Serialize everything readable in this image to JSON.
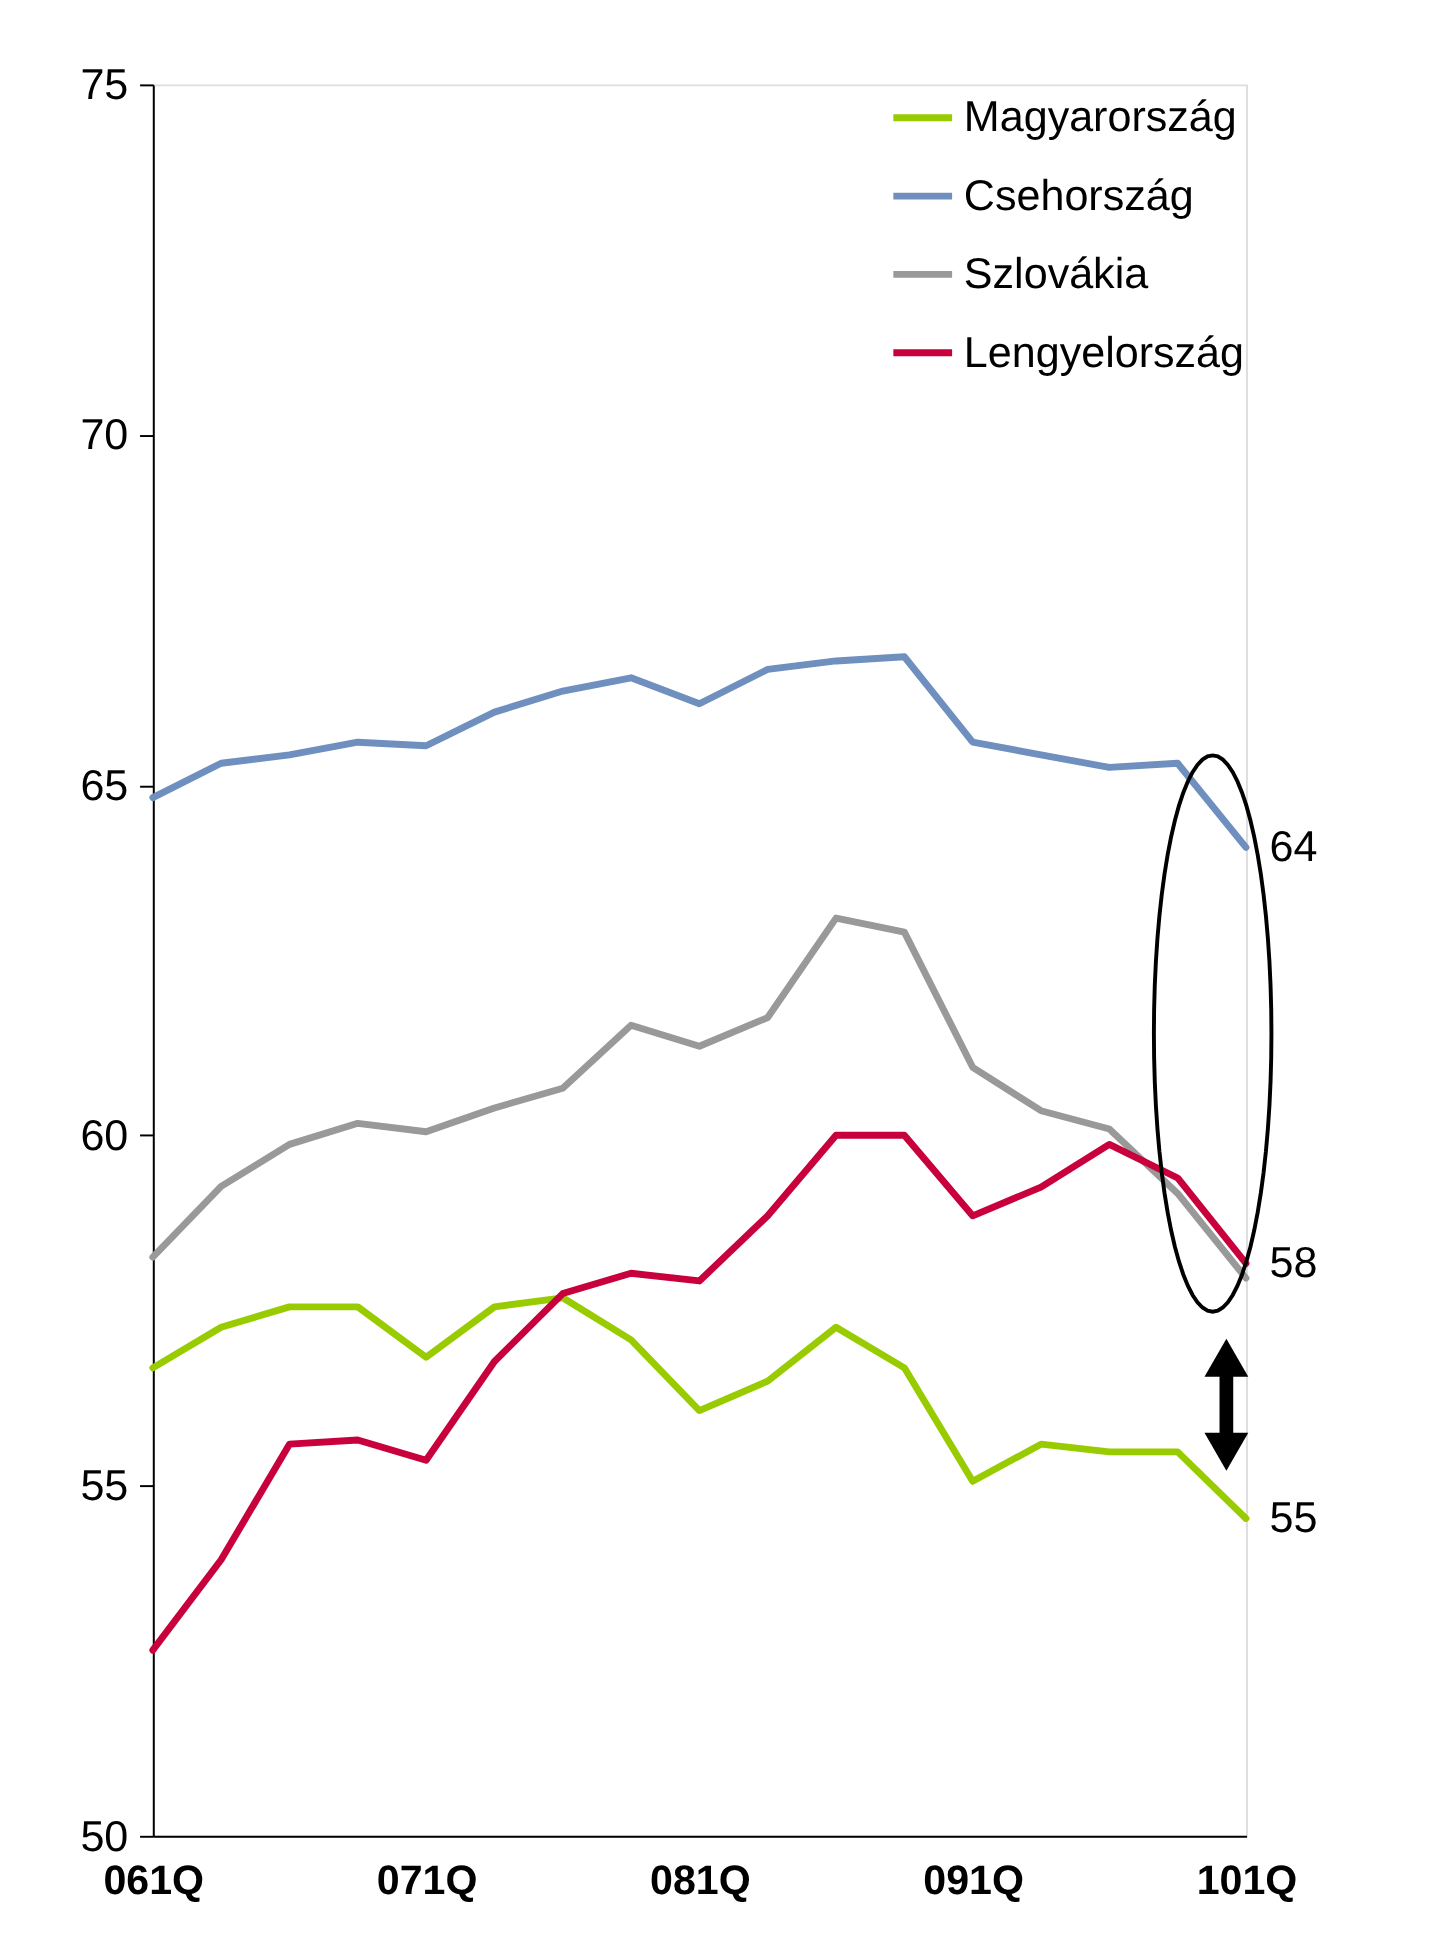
{
  "chart_data": {
    "type": "line",
    "categories": [
      "061Q",
      null,
      null,
      null,
      "071Q",
      null,
      null,
      null,
      "081Q",
      null,
      null,
      null,
      "091Q",
      null,
      null,
      null,
      "101Q"
    ],
    "series": [
      {
        "name": "Magyarország",
        "color": "#99cc00",
        "values": [
          56.68,
          57.26,
          57.55,
          57.55,
          56.83,
          57.55,
          57.68,
          57.08,
          56.07,
          56.49,
          57.26,
          56.68,
          55.06,
          55.59,
          55.48,
          55.48,
          54.53
        ]
      },
      {
        "name": "Csehország",
        "color": "#6f8fbf",
        "values": [
          64.82,
          65.31,
          65.43,
          65.61,
          65.56,
          66.04,
          66.34,
          66.53,
          66.16,
          66.65,
          66.77,
          66.83,
          65.61,
          65.43,
          65.25,
          65.31,
          64.11
        ]
      },
      {
        "name": "Szlovákia",
        "color": "#999999",
        "values": [
          58.26,
          59.27,
          59.87,
          60.17,
          60.05,
          60.39,
          60.67,
          61.57,
          61.27,
          61.68,
          63.1,
          62.9,
          60.97,
          60.35,
          60.09,
          59.17,
          57.96
        ]
      },
      {
        "name": "Lengyelország",
        "color": "#c8003c",
        "values": [
          52.65,
          53.94,
          55.59,
          55.65,
          55.36,
          56.77,
          57.74,
          58.03,
          57.92,
          58.85,
          60.0,
          60.0,
          58.85,
          59.26,
          59.87,
          59.39,
          58.17
        ]
      }
    ],
    "annotations": [
      {
        "text": "64",
        "x": "101Q",
        "y": 64.11
      },
      {
        "text": "58",
        "x": "101Q",
        "y": 58.17
      },
      {
        "text": "55",
        "x": "101Q",
        "y": 54.53
      }
    ],
    "ylim": [
      50,
      75
    ],
    "yticks": [
      50,
      55,
      60,
      65,
      70,
      75
    ],
    "grid": false,
    "legend": "top right",
    "marker": "none",
    "line_style": "solid"
  }
}
